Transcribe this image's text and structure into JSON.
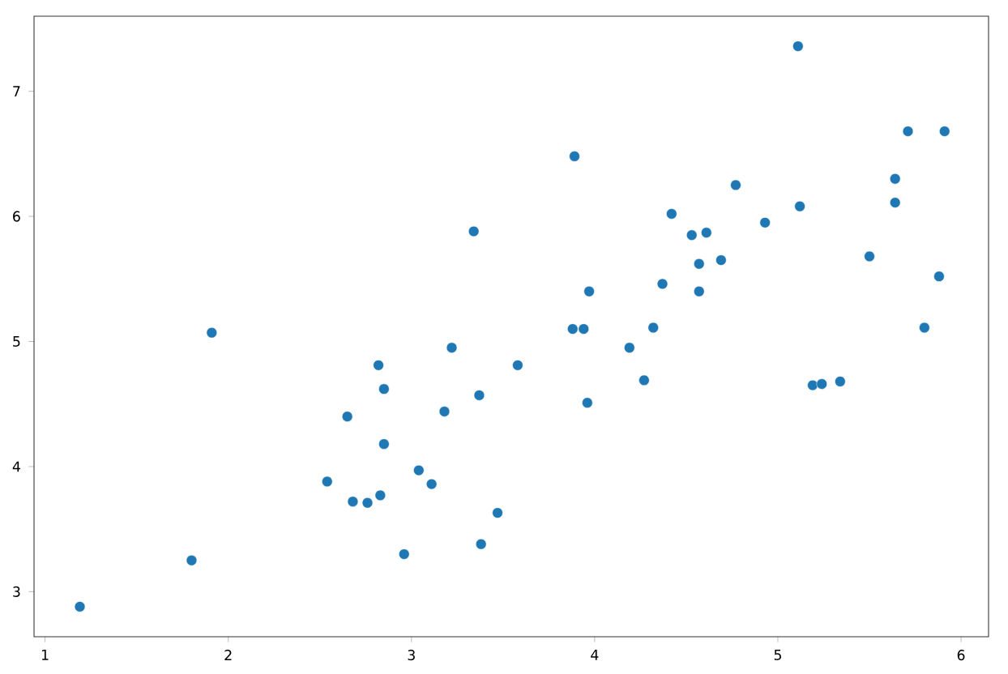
{
  "chart_data": {
    "type": "scatter",
    "color": "#1f77b4",
    "marker": "circle",
    "grid": false,
    "x": [
      1.19,
      1.8,
      1.91,
      2.54,
      2.65,
      2.68,
      2.76,
      2.82,
      2.83,
      2.85,
      2.85,
      2.96,
      3.04,
      3.11,
      3.18,
      3.22,
      3.34,
      3.37,
      3.38,
      3.47,
      3.58,
      3.89,
      3.88,
      3.94,
      3.96,
      3.97,
      4.19,
      4.27,
      4.32,
      4.37,
      4.42,
      4.53,
      4.57,
      4.57,
      4.61,
      4.69,
      4.77,
      4.93,
      5.11,
      5.12,
      5.19,
      5.24,
      5.34,
      5.5,
      5.64,
      5.64,
      5.71,
      5.8,
      5.88,
      5.91
    ],
    "values": [
      2.88,
      3.25,
      5.07,
      3.88,
      4.4,
      3.72,
      3.71,
      4.81,
      3.77,
      4.62,
      4.18,
      3.3,
      3.97,
      3.86,
      4.44,
      4.95,
      5.88,
      4.57,
      3.38,
      3.63,
      4.81,
      6.48,
      5.1,
      5.1,
      4.51,
      5.4,
      4.95,
      4.69,
      5.11,
      5.46,
      6.02,
      5.85,
      5.4,
      5.62,
      5.87,
      5.65,
      6.25,
      5.95,
      7.36,
      6.08,
      4.65,
      4.66,
      4.68,
      5.68,
      6.3,
      6.11,
      6.68,
      5.11,
      5.52,
      6.68
    ],
    "xlim": [
      0.94,
      6.15
    ],
    "ylim": [
      2.64,
      7.6
    ],
    "xticks": [
      1,
      2,
      3,
      4,
      5,
      6
    ],
    "yticks": [
      3,
      4,
      5,
      6,
      7
    ]
  }
}
